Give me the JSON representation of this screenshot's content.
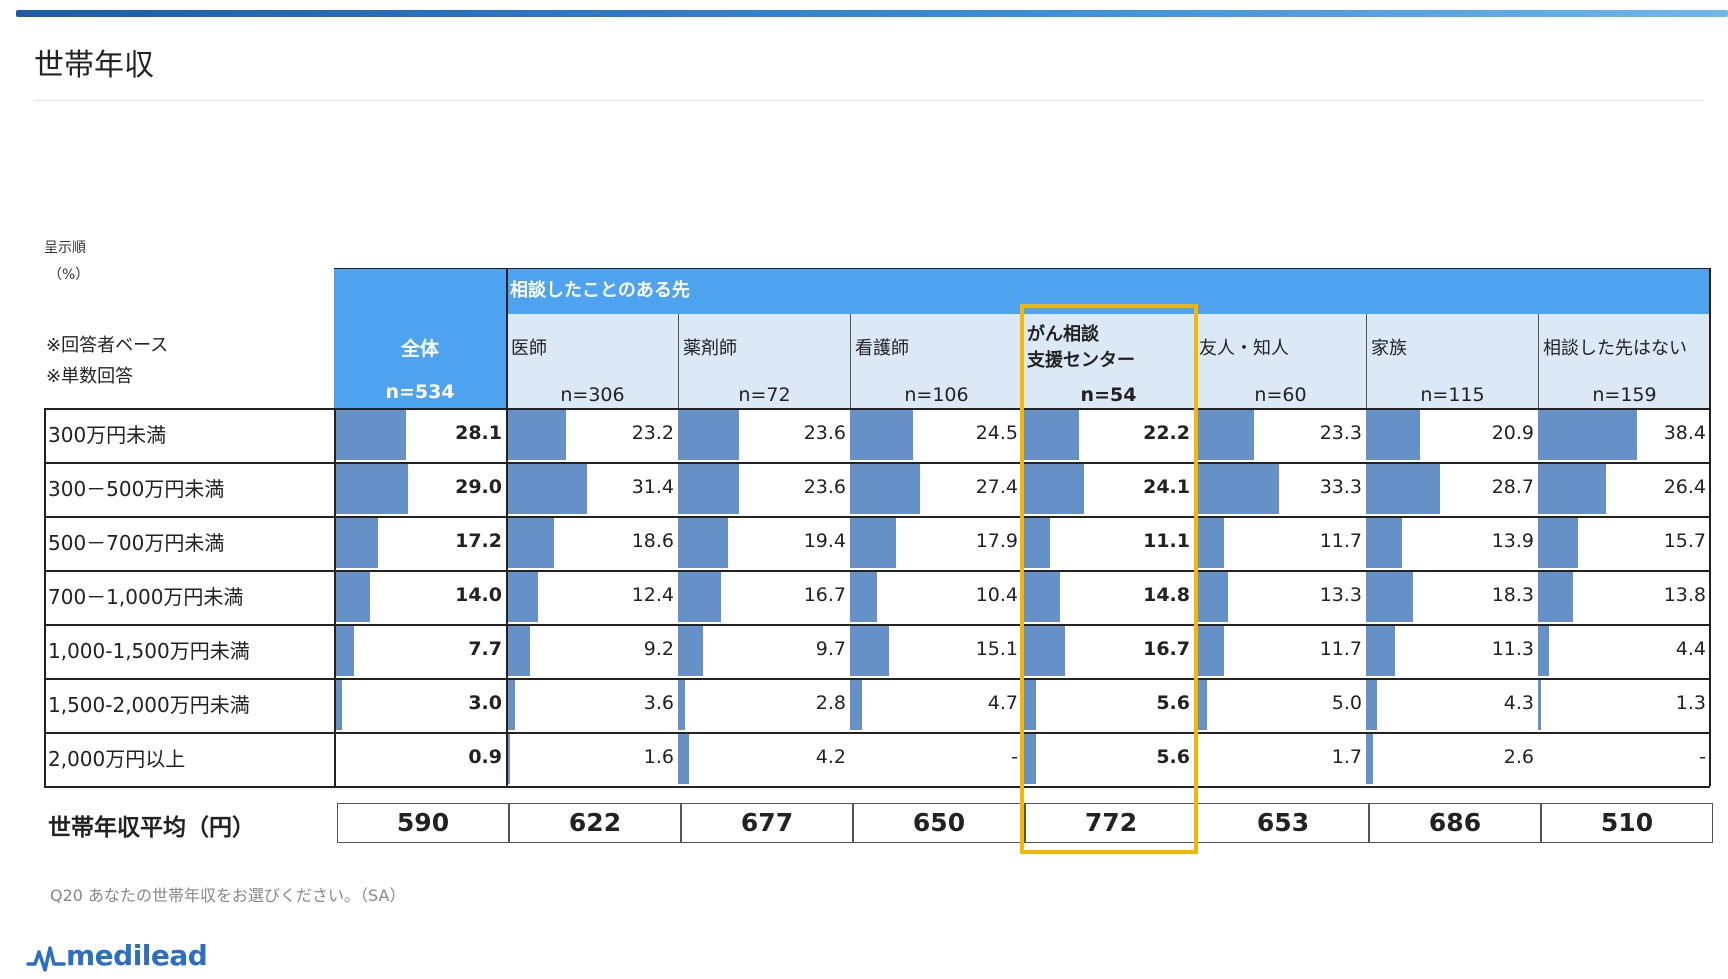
{
  "page": {
    "title": "世帯年収"
  },
  "notes": {
    "order": "呈示順",
    "unit": "（%）",
    "base": "※回答者ベース",
    "single": "※単数回答"
  },
  "colors": {
    "header": "#4da3f0",
    "subheader": "#dbe9f7",
    "bar": "#6590c8",
    "highlight": "#f5b800"
  },
  "chart_data": {
    "type": "table",
    "group_label": "相談したことのある先",
    "columns": [
      {
        "label": "全体",
        "n": "n=534"
      },
      {
        "label": "医師",
        "n": "n=306"
      },
      {
        "label": "薬剤師",
        "n": "n=72"
      },
      {
        "label": "看護師",
        "n": "n=106"
      },
      {
        "label": "がん相談\n支援センター",
        "n": "n=54"
      },
      {
        "label": "友人・知人",
        "n": "n=60"
      },
      {
        "label": "家族",
        "n": "n=115"
      },
      {
        "label": "相談した先はない",
        "n": "n=159"
      }
    ],
    "rows": [
      {
        "label": "300万円未満",
        "values": [
          "28.1",
          "23.2",
          "23.6",
          "24.5",
          "22.2",
          "23.3",
          "20.9",
          "38.4"
        ]
      },
      {
        "label": "300－500万円未満",
        "values": [
          "29.0",
          "31.4",
          "23.6",
          "27.4",
          "24.1",
          "33.3",
          "28.7",
          "26.4"
        ]
      },
      {
        "label": "500－700万円未満",
        "values": [
          "17.2",
          "18.6",
          "19.4",
          "17.9",
          "11.1",
          "11.7",
          "13.9",
          "15.7"
        ]
      },
      {
        "label": "700－1,000万円未満",
        "values": [
          "14.0",
          "12.4",
          "16.7",
          "10.4",
          "14.8",
          "13.3",
          "18.3",
          "13.8"
        ]
      },
      {
        "label": "1,000-1,500万円未満",
        "values": [
          "7.7",
          "9.2",
          "9.7",
          "15.1",
          "16.7",
          "11.7",
          "11.3",
          "4.4"
        ]
      },
      {
        "label": "1,500-2,000万円未満",
        "values": [
          "3.0",
          "3.6",
          "2.8",
          "4.7",
          "5.6",
          "5.0",
          "4.3",
          "1.3"
        ]
      },
      {
        "label": "2,000万円以上",
        "values": [
          "0.9",
          "1.6",
          "4.2",
          "-",
          "5.6",
          "1.7",
          "2.6",
          "-"
        ]
      }
    ],
    "average": {
      "label": "世帯年収平均（円）",
      "values": [
        "590",
        "622",
        "677",
        "650",
        "772",
        "653",
        "686",
        "510"
      ]
    },
    "highlighted_column": 4
  },
  "question": "Q20  あなたの世帯年収をお選びください。（SA）",
  "logo": {
    "text": "medilead"
  }
}
